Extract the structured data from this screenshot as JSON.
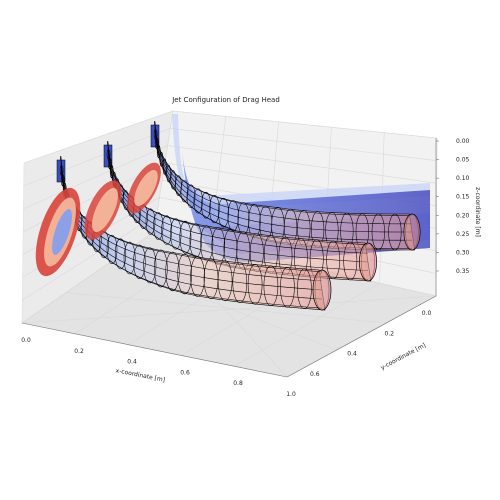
{
  "chart_data": {
    "type": "surface3d",
    "title": "Jet Configuration of Drag Head",
    "xlabel": "x-coordinate [m]",
    "ylabel": "y-coordinate [m]",
    "zlabel": "z-coordinate [m]",
    "xlim": [
      0.0,
      1.0
    ],
    "ylim": [
      0.0,
      0.6
    ],
    "zlim": [
      0.0,
      0.35
    ],
    "z_inverted": true,
    "x_ticks": [
      "0.0",
      "0.2",
      "0.4",
      "0.6",
      "0.8",
      "1.0"
    ],
    "y_ticks": [
      "0.0",
      "0.2",
      "0.4",
      "0.6"
    ],
    "z_ticks": [
      "0.00",
      "0.05",
      "0.10",
      "0.15",
      "0.20",
      "0.25",
      "0.30",
      "0.35"
    ],
    "grid": true,
    "colormap": "coolwarm",
    "jets": [
      {
        "nozzle": "nozzle-1",
        "y_position": 0.0
      },
      {
        "nozzle": "nozzle-2",
        "y_position": 0.2
      },
      {
        "nozzle": "nozzle-3",
        "y_position": 0.4
      }
    ]
  }
}
